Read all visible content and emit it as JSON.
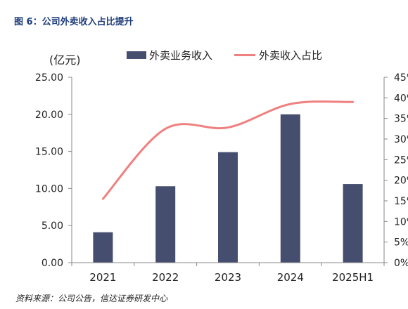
{
  "figure": {
    "title": "图 6：公司外卖收入占比提升",
    "source": "资料来源：公司公告，信达证券研发中心"
  },
  "colors": {
    "bar": "#454e6e",
    "line": "#f08080",
    "axis": "#888888",
    "title": "#1f3d7a"
  },
  "chart_data": {
    "type": "bar",
    "categories": [
      "2021",
      "2022",
      "2023",
      "2024",
      "2025H1"
    ],
    "series": [
      {
        "name": "外卖业务收入",
        "type": "bar",
        "axis": "left",
        "values": [
          4.1,
          10.3,
          14.9,
          20.0,
          10.6
        ]
      },
      {
        "name": "外卖收入占比",
        "type": "line",
        "axis": "right",
        "smooth": true,
        "values": [
          15.5,
          32.5,
          32.8,
          38.5,
          39.0
        ]
      }
    ],
    "y_left": {
      "unit_label": "(亿元)",
      "ylim": [
        0,
        25
      ],
      "ticks": [
        "0.00",
        "5.00",
        "10.00",
        "15.00",
        "20.00",
        "25.00"
      ]
    },
    "y_right": {
      "ylim": [
        0,
        45
      ],
      "ticks": [
        "0%",
        "5%",
        "10%",
        "15%",
        "20%",
        "25%",
        "30%",
        "35%",
        "40%",
        "45%"
      ]
    },
    "legend_placement": "top",
    "grid": false
  }
}
